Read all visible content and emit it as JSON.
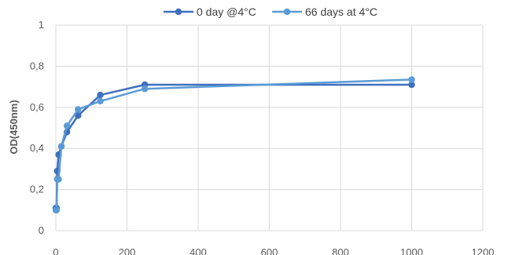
{
  "chart_data": {
    "type": "scatter",
    "title": "",
    "xlabel": "",
    "ylabel": "OD(450nm)",
    "xlim": [
      0,
      1200
    ],
    "ylim": [
      0,
      1
    ],
    "x_ticks": [
      0,
      200,
      400,
      600,
      800,
      1000,
      1200
    ],
    "y_ticks": [
      "0",
      "0,2",
      "0,4",
      "0,6",
      "0,8",
      "1"
    ],
    "y_tick_values": [
      0,
      0.2,
      0.4,
      0.6,
      0.8,
      1
    ],
    "grid": true,
    "legend_position": "top",
    "series": [
      {
        "name": "0 day @4°C",
        "color": "#3f6fbf",
        "x": [
          0,
          1.95,
          3.9,
          7.8,
          15.6,
          31.25,
          62.5,
          125,
          250,
          1000
        ],
        "y": [
          0.11,
          0.11,
          0.29,
          0.37,
          0.41,
          0.48,
          0.56,
          0.66,
          0.71,
          0.71
        ]
      },
      {
        "name": "66 days at 4°C",
        "color": "#5b9bd5",
        "x": [
          0,
          1.95,
          3.9,
          7.8,
          15.6,
          31.25,
          62.5,
          125,
          250,
          1000
        ],
        "y": [
          0.1,
          0.1,
          0.25,
          0.25,
          0.41,
          0.51,
          0.59,
          0.63,
          0.69,
          0.735
        ]
      }
    ]
  }
}
